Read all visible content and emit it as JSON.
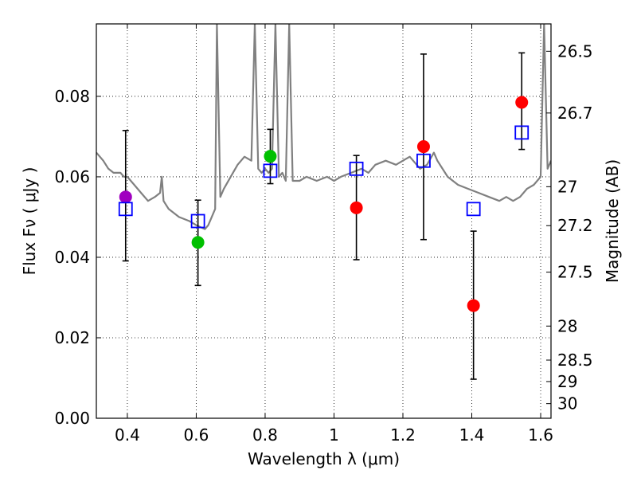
{
  "chart_data": {
    "type": "scatter",
    "xlabel": "Wavelength  λ (μm)",
    "ylabel": "Flux  Fν  ( μJy )",
    "y2label": "Magnitude (AB)",
    "xlim": [
      0.31,
      1.63
    ],
    "ylim": [
      0.0,
      0.098
    ],
    "grid": true,
    "x_ticks": [
      0.4,
      0.6,
      0.8,
      1.0,
      1.2,
      1.4,
      1.6
    ],
    "x_tick_labels": [
      "0.4",
      "0.6",
      "0.8",
      "1",
      "1.2",
      "1.4",
      "1.6"
    ],
    "y_ticks": [
      0.0,
      0.02,
      0.04,
      0.06,
      0.08
    ],
    "y_tick_labels": [
      "0.00",
      "0.02",
      "0.04",
      "0.06",
      "0.08"
    ],
    "y2_ticks": [
      26.5,
      26.7,
      27.0,
      27.2,
      27.5,
      28.0,
      28.5,
      29.0,
      30.0
    ],
    "y2_tick_labels": [
      "26.5",
      "26.7",
      "27",
      "27.2",
      "27.5",
      "28",
      "28.5",
      "29",
      "30"
    ],
    "colors": {
      "spectrum": "#808080",
      "model": "#0000ff",
      "red": "#ff0000",
      "green": "#00c000",
      "purple": "#a000c0",
      "error": "#000000"
    },
    "model_template": {
      "name": "Model spectrum",
      "x": [
        0.31,
        0.33,
        0.345,
        0.36,
        0.38,
        0.39,
        0.4,
        0.42,
        0.44,
        0.46,
        0.48,
        0.495,
        0.5,
        0.505,
        0.52,
        0.55,
        0.58,
        0.6,
        0.625,
        0.635,
        0.645,
        0.655,
        0.66,
        0.67,
        0.68,
        0.7,
        0.72,
        0.74,
        0.76,
        0.77,
        0.78,
        0.79,
        0.8,
        0.81,
        0.82,
        0.83,
        0.84,
        0.85,
        0.86,
        0.87,
        0.88,
        0.9,
        0.92,
        0.95,
        0.98,
        1.0,
        1.02,
        1.05,
        1.08,
        1.1,
        1.12,
        1.15,
        1.18,
        1.2,
        1.22,
        1.25,
        1.27,
        1.29,
        1.3,
        1.33,
        1.36,
        1.39,
        1.42,
        1.45,
        1.48,
        1.5,
        1.52,
        1.54,
        1.56,
        1.58,
        1.6,
        1.61,
        1.62,
        1.63
      ],
      "flux": [
        0.066,
        0.064,
        0.062,
        0.061,
        0.061,
        0.06,
        0.06,
        0.058,
        0.056,
        0.054,
        0.055,
        0.056,
        0.06,
        0.054,
        0.052,
        0.05,
        0.049,
        0.048,
        0.047,
        0.048,
        0.05,
        0.052,
        0.098,
        0.055,
        0.057,
        0.06,
        0.063,
        0.065,
        0.064,
        0.098,
        0.062,
        0.061,
        0.062,
        0.061,
        0.062,
        0.098,
        0.06,
        0.061,
        0.059,
        0.098,
        0.059,
        0.059,
        0.06,
        0.059,
        0.06,
        0.059,
        0.06,
        0.061,
        0.062,
        0.061,
        0.063,
        0.064,
        0.063,
        0.064,
        0.065,
        0.062,
        0.063,
        0.066,
        0.064,
        0.06,
        0.058,
        0.057,
        0.056,
        0.055,
        0.054,
        0.055,
        0.054,
        0.055,
        0.057,
        0.058,
        0.06,
        0.098,
        0.062,
        0.064
      ]
    },
    "series": [
      {
        "name": "Red measurements",
        "marker": "circle",
        "color": "#ff0000",
        "points": [
          {
            "x": 1.065,
            "y": 0.0523,
            "err_low": 0.0394,
            "err_high": 0.0653
          },
          {
            "x": 1.26,
            "y": 0.0675,
            "err_low": 0.0444,
            "err_high": 0.0905
          },
          {
            "x": 1.405,
            "y": 0.028,
            "err_low": 0.0097,
            "err_high": 0.0465
          },
          {
            "x": 1.545,
            "y": 0.0785,
            "err_low": 0.0668,
            "err_high": 0.0908
          }
        ]
      },
      {
        "name": "Green measurements",
        "marker": "circle",
        "color": "#00c000",
        "points": [
          {
            "x": 0.605,
            "y": 0.0437,
            "err_low": 0.033,
            "err_high": 0.0542
          },
          {
            "x": 0.815,
            "y": 0.0651,
            "err_low": 0.0583,
            "err_high": 0.0718
          }
        ]
      },
      {
        "name": "Purple measurement",
        "marker": "circle",
        "color": "#a000c0",
        "points": [
          {
            "x": 0.395,
            "y": 0.055,
            "err_low": 0.0391,
            "err_high": 0.0715
          }
        ]
      },
      {
        "name": "Model photometry",
        "marker": "square",
        "color": "#0000ff",
        "points": [
          {
            "x": 0.395,
            "y": 0.052
          },
          {
            "x": 0.605,
            "y": 0.049
          },
          {
            "x": 0.815,
            "y": 0.0615
          },
          {
            "x": 1.065,
            "y": 0.062
          },
          {
            "x": 1.26,
            "y": 0.064
          },
          {
            "x": 1.405,
            "y": 0.052
          },
          {
            "x": 1.545,
            "y": 0.071
          }
        ]
      }
    ]
  }
}
